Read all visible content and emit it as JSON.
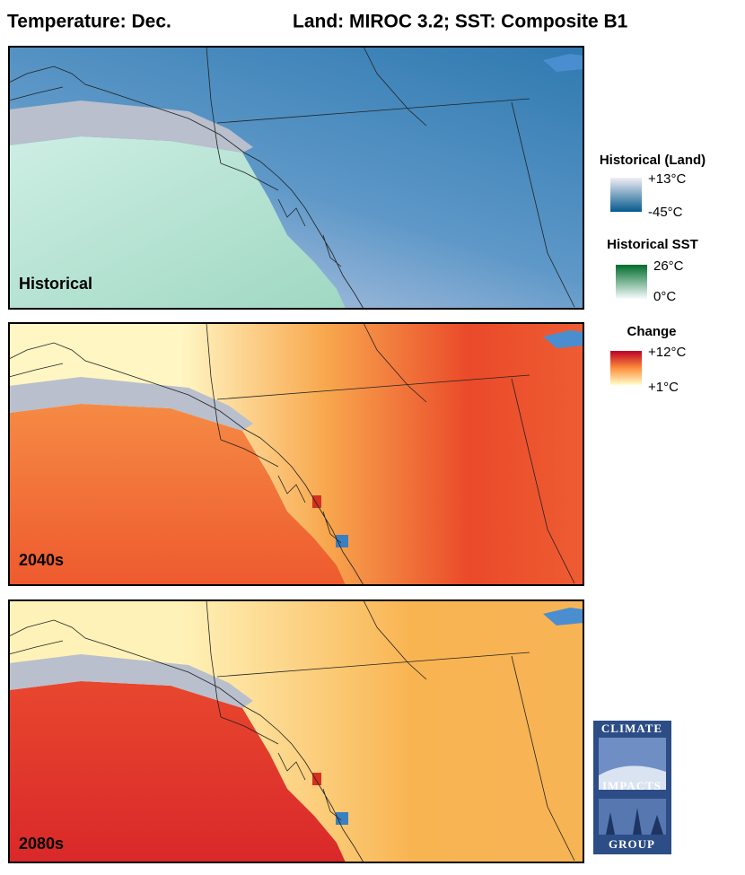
{
  "header": {
    "title": "Temperature: Dec.",
    "subtitle": "Land: MIROC 3.2; SST: Composite B1"
  },
  "panels": [
    {
      "label": "Historical"
    },
    {
      "label": "2040s"
    },
    {
      "label": "2080s"
    }
  ],
  "legends": [
    {
      "title": "Historical (Land)",
      "max": "+13°C",
      "min": "-45°C"
    },
    {
      "title": "Historical SST",
      "max": "26°C",
      "min": "0°C"
    },
    {
      "title": "Change",
      "max": "+12°C",
      "min": "+1°C"
    }
  ],
  "logo": {
    "lines": [
      "CLIMATE",
      "IMPACTS",
      "GROUP"
    ]
  }
}
